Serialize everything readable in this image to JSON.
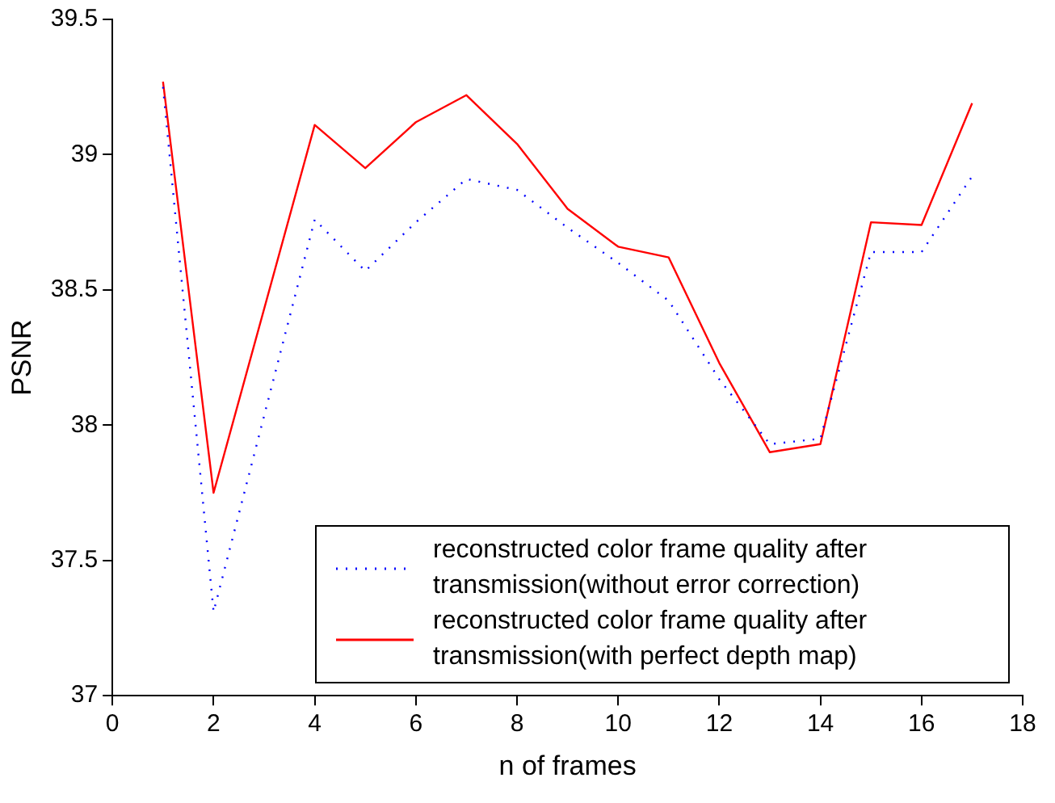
{
  "chart_data": {
    "type": "line",
    "xlabel": "n of frames",
    "ylabel": "PSNR",
    "x": [
      1,
      2,
      3,
      4,
      5,
      6,
      7,
      8,
      9,
      10,
      11,
      12,
      13,
      14,
      15,
      16,
      17
    ],
    "series": [
      {
        "name": "reconstructed color frame quality after transmission(without error correction)",
        "color": "#0000ff",
        "line_style": "dotted",
        "values": [
          39.25,
          37.31,
          null,
          38.76,
          38.57,
          38.75,
          38.91,
          38.87,
          38.73,
          38.6,
          38.46,
          38.17,
          37.93,
          37.95,
          38.64,
          38.64,
          38.92
        ]
      },
      {
        "name": "reconstructed color frame quality after transmission(with perfect depth map)",
        "color": "#ff0000",
        "line_style": "solid",
        "values": [
          39.27,
          37.75,
          null,
          39.11,
          38.95,
          39.12,
          39.22,
          39.04,
          38.8,
          38.66,
          38.62,
          38.23,
          37.9,
          37.93,
          38.75,
          38.74,
          39.19
        ]
      }
    ],
    "xlim": [
      0,
      18
    ],
    "xticks": [
      0,
      2,
      4,
      6,
      8,
      10,
      12,
      14,
      16,
      18
    ],
    "ylim": [
      37,
      39.5
    ],
    "yticks": [
      37,
      37.5,
      38,
      38.5,
      39,
      39.5
    ],
    "grid": false,
    "legend": "bottom right",
    "marker": "none"
  }
}
